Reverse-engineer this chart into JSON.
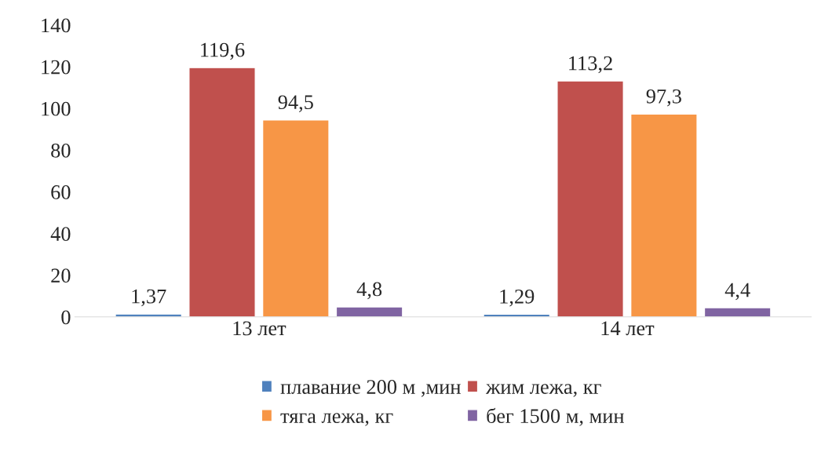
{
  "chart_data": {
    "type": "bar",
    "categories": [
      "13 лет",
      "14 лет"
    ],
    "series": [
      {
        "name": "плавание 200 м ,мин",
        "color": "#4f81bd",
        "values": [
          1.37,
          1.29
        ],
        "value_labels": [
          "1,37",
          "1,29"
        ]
      },
      {
        "name": "жим лежа, кг",
        "color": "#c0504d",
        "values": [
          119.6,
          113.2
        ],
        "value_labels": [
          "119,6",
          "113,2"
        ]
      },
      {
        "name": "тяга лежа, кг",
        "color": "#f79646",
        "values": [
          94.5,
          97.3
        ],
        "value_labels": [
          "94,5",
          "97,3"
        ]
      },
      {
        "name": "бег 1500 м, мин",
        "color": "#8064a2",
        "values": [
          4.8,
          4.4
        ],
        "value_labels": [
          "4,8",
          "4,4"
        ]
      }
    ],
    "ylim": [
      0,
      140
    ],
    "yticks": [
      0,
      20,
      40,
      60,
      80,
      100,
      120,
      140
    ],
    "grid": false,
    "legend": "bottom"
  }
}
